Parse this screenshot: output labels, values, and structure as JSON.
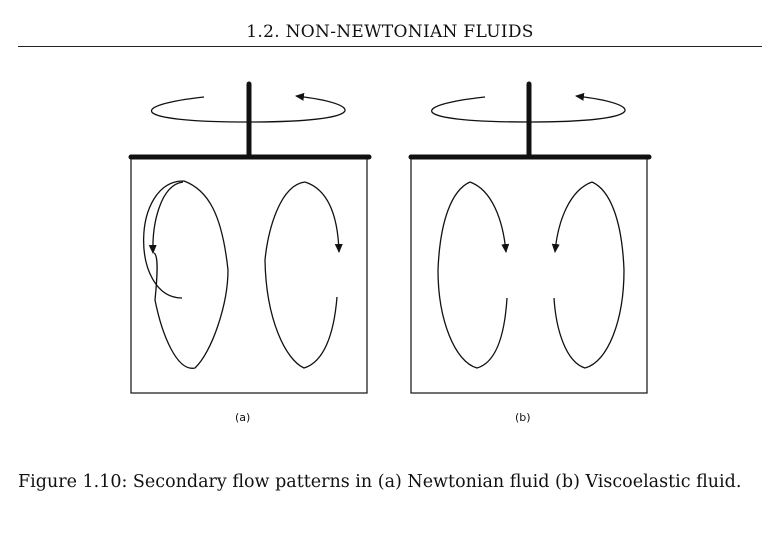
{
  "header": {
    "running_head": "1.2.  NON-NEWTONIAN FLUIDS"
  },
  "figure": {
    "panels": [
      {
        "label": "(a)",
        "fluid": "Newtonian fluid"
      },
      {
        "label": "(b)",
        "fluid": "Viscoelastic fluid"
      }
    ],
    "caption": "Figure 1.10: Secondary flow patterns in (a) Newtonian fluid (b) Viscoelastic fluid."
  },
  "colors": {
    "ink": "#111111",
    "background": "#ffffff"
  }
}
